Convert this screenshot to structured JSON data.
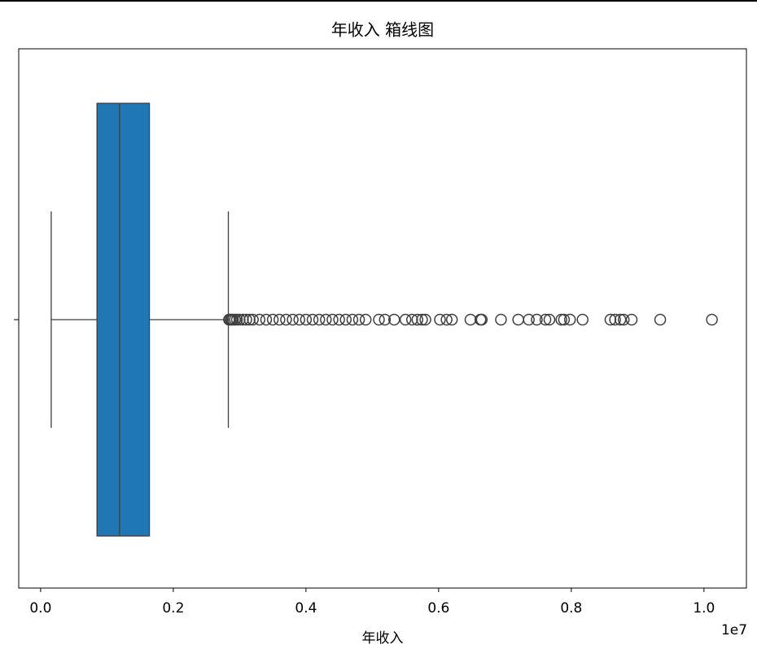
{
  "chart_data": {
    "type": "boxplot",
    "title": "年收入 箱线图",
    "xlabel": "年收入",
    "offset_text": "1e7",
    "orientation": "horizontal",
    "color": "#1f77b4",
    "xlim": [
      -0.033,
      1.064
    ],
    "xticks": [
      {
        "value": 0,
        "label": "0.0"
      },
      0.2,
      0.4,
      0.6,
      0.8,
      {
        "value": 1,
        "label": "1.0"
      }
    ],
    "boxes": [
      {
        "whislo": 0.016,
        "q1": 0.085,
        "med": 0.119,
        "q3": 0.164,
        "whishi": 0.283,
        "fliers": [
          0.284,
          0.286,
          0.288,
          0.29,
          0.293,
          0.296,
          0.3,
          0.305,
          0.31,
          0.315,
          0.32,
          0.33,
          0.34,
          0.35,
          0.36,
          0.37,
          0.38,
          0.39,
          0.4,
          0.41,
          0.42,
          0.43,
          0.44,
          0.45,
          0.46,
          0.47,
          0.48,
          0.49,
          0.51,
          0.519,
          0.533,
          0.55,
          0.56,
          0.568,
          0.575,
          0.58,
          0.602,
          0.612,
          0.62,
          0.648,
          0.663,
          0.665,
          0.694,
          0.72,
          0.736,
          0.748,
          0.761,
          0.767,
          0.785,
          0.789,
          0.798,
          0.817,
          0.859,
          0.866,
          0.874,
          0.879,
          0.891,
          0.934,
          1.012
        ]
      }
    ]
  }
}
